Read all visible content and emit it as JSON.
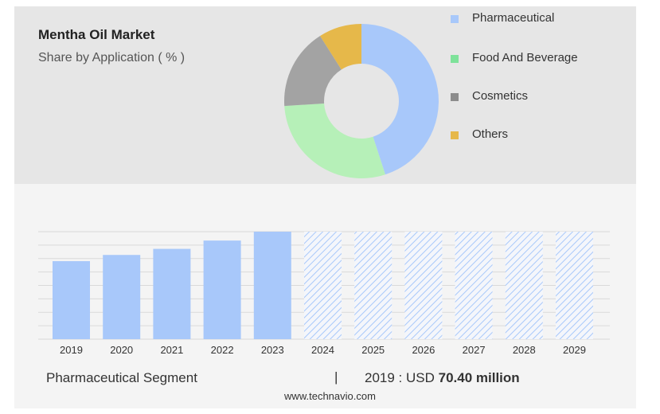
{
  "header": {
    "title": "Mentha Oil Market",
    "subtitle": "Share by Application ( % )"
  },
  "legend": [
    {
      "label": "Pharmaceutical",
      "color": "#a8c8fa"
    },
    {
      "label": "Food And Beverage",
      "color": "#7ee29a"
    },
    {
      "label": "Cosmetics",
      "color": "#8c8c8c"
    },
    {
      "label": "Others",
      "color": "#e6b84a"
    }
  ],
  "chart_data": [
    {
      "type": "pie",
      "categories": [
        "Pharmaceutical",
        "Food And Beverage",
        "Cosmetics",
        "Others"
      ],
      "values": [
        45,
        29,
        17,
        9
      ],
      "colors": [
        "#a8c8fa",
        "#b6f0b8",
        "#a3a3a3",
        "#e6b84a"
      ]
    },
    {
      "type": "bar",
      "categories": [
        "2019",
        "2020",
        "2021",
        "2022",
        "2023",
        "2024",
        "2025",
        "2026",
        "2027",
        "2028",
        "2029"
      ],
      "values": [
        70.4,
        76,
        81.5,
        89,
        97,
        null,
        null,
        null,
        null,
        null,
        null
      ],
      "forecast_categories": [
        "2024",
        "2025",
        "2026",
        "2027",
        "2028",
        "2029"
      ],
      "ylim": [
        0,
        97
      ],
      "grid": true,
      "color": "#a8c8fa"
    }
  ],
  "footer": {
    "segment_label": "Pharmaceutical Segment",
    "separator": "|",
    "year_prefix": "2019 : USD",
    "value_text": "70.40 million",
    "website": "www.technavio.com"
  }
}
